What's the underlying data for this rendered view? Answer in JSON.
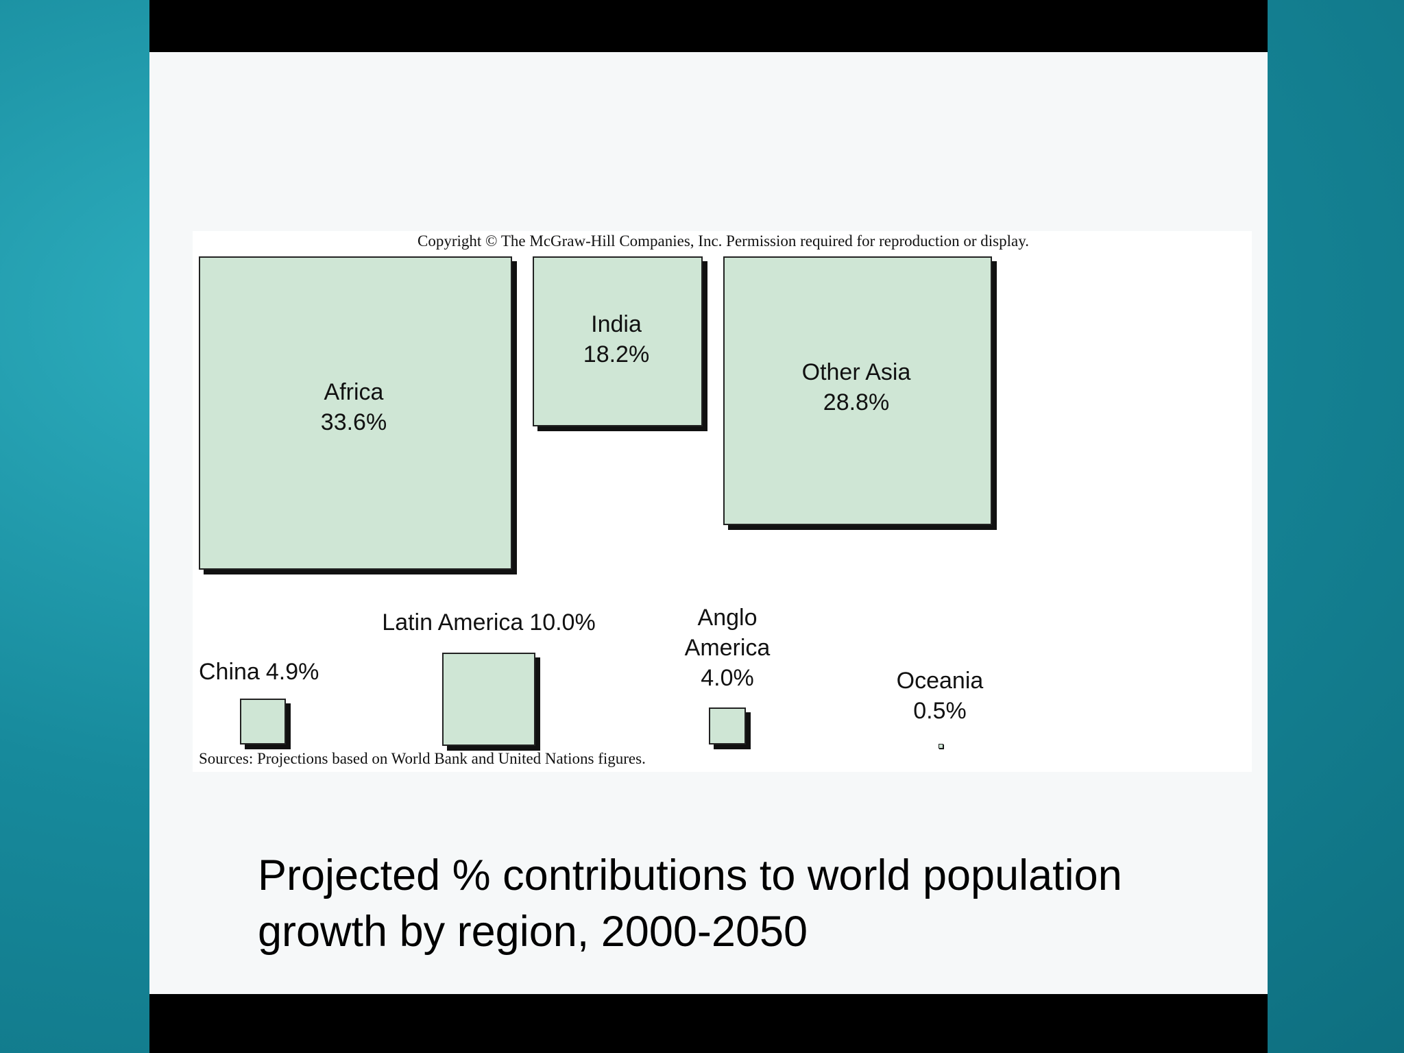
{
  "chart_data": {
    "type": "square",
    "title": "Projected % contributions to world population growth by region, 2000-2050",
    "copyright": "Copyright © The McGraw-Hill Companies, Inc. Permission required for reproduction or display.",
    "source": "Sources: Projections based on World Bank and United Nations figures.",
    "categories": [
      "Africa",
      "India",
      "Other Asia",
      "China",
      "Latin America",
      "Anglo America",
      "Oceania"
    ],
    "values": [
      33.6,
      18.2,
      28.8,
      4.9,
      10.0,
      4.0,
      0.5
    ],
    "value_labels": [
      "33.6%",
      "18.2%",
      "28.8%",
      "4.9%",
      "10.0%",
      "4.0%",
      "0.5%"
    ],
    "color": "#cfe6d5"
  }
}
